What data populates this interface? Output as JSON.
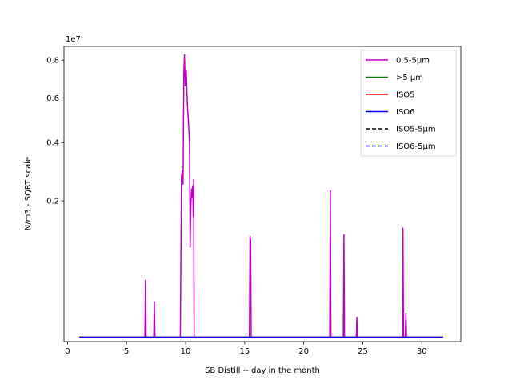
{
  "chart_data": {
    "type": "line",
    "title": "",
    "xlabel": "SB Distill -- day in the month",
    "ylabel": "N/m3 - SQRT scale",
    "y_scale": "sqrt",
    "y_multiplier_label": "1e7",
    "xlim": [
      -0.3,
      33.3
    ],
    "ylim": [
      0,
      8800000
    ],
    "x_ticks": [
      0,
      5,
      10,
      15,
      20,
      25,
      30
    ],
    "x_tick_labels": [
      "0",
      "5",
      "10",
      "15",
      "20",
      "25",
      "30"
    ],
    "y_ticks": [
      2000000,
      4000000,
      6000000,
      8000000
    ],
    "y_tick_labels": [
      "0.2",
      "0.4",
      "0.6",
      "0.8"
    ],
    "grid": false,
    "legend_placement": "top-right",
    "series": [
      {
        "name": "0.5-5µm",
        "color": "#bf00bf",
        "style": "solid",
        "points": [
          [
            1.0,
            2000
          ],
          [
            6.55,
            2000
          ],
          [
            6.6,
            380000
          ],
          [
            6.65,
            2000
          ],
          [
            7.3,
            2000
          ],
          [
            7.35,
            160000
          ],
          [
            7.4,
            2000
          ],
          [
            9.55,
            2000
          ],
          [
            9.65,
            2750000
          ],
          [
            9.72,
            2950000
          ],
          [
            9.78,
            2500000
          ],
          [
            9.85,
            7300000
          ],
          [
            9.9,
            8300000
          ],
          [
            9.97,
            6600000
          ],
          [
            10.05,
            7400000
          ],
          [
            10.15,
            5600000
          ],
          [
            10.25,
            4800000
          ],
          [
            10.33,
            3900000
          ],
          [
            10.38,
            900000
          ],
          [
            10.43,
            1800000
          ],
          [
            10.5,
            2350000
          ],
          [
            10.55,
            2100000
          ],
          [
            10.6,
            2450000
          ],
          [
            10.65,
            1600000
          ],
          [
            10.68,
            2650000
          ],
          [
            10.72,
            2000
          ],
          [
            15.4,
            2000
          ],
          [
            15.45,
            1120000
          ],
          [
            15.5,
            1050000
          ],
          [
            15.55,
            2000
          ],
          [
            22.2,
            2000
          ],
          [
            22.25,
            2300000
          ],
          [
            22.3,
            2000
          ],
          [
            23.35,
            2000
          ],
          [
            23.4,
            1150000
          ],
          [
            23.45,
            2000
          ],
          [
            24.45,
            2000
          ],
          [
            24.5,
            60000
          ],
          [
            24.55,
            2000
          ],
          [
            28.35,
            2000
          ],
          [
            28.4,
            1300000
          ],
          [
            28.45,
            2000
          ],
          [
            28.6,
            2000
          ],
          [
            28.65,
            80000
          ],
          [
            28.7,
            2000
          ],
          [
            31.8,
            2000
          ]
        ]
      },
      {
        "name": ">5 µm",
        "color": "#008000",
        "style": "solid",
        "points": [
          [
            1.0,
            2000
          ],
          [
            31.8,
            2000
          ]
        ]
      },
      {
        "name": "ISO5",
        "color": "#ff0000",
        "style": "solid",
        "points": [
          [
            1.0,
            2000
          ],
          [
            31.8,
            2000
          ]
        ]
      },
      {
        "name": "ISO6",
        "color": "#0000ff",
        "style": "solid",
        "points": [
          [
            1.0,
            2000
          ],
          [
            31.8,
            2000
          ]
        ]
      },
      {
        "name": "ISO5-5µm",
        "color": "#000000",
        "style": "dashed",
        "points": []
      },
      {
        "name": "ISO6-5µm",
        "color": "#0000ff",
        "style": "dashed",
        "points": []
      }
    ]
  }
}
